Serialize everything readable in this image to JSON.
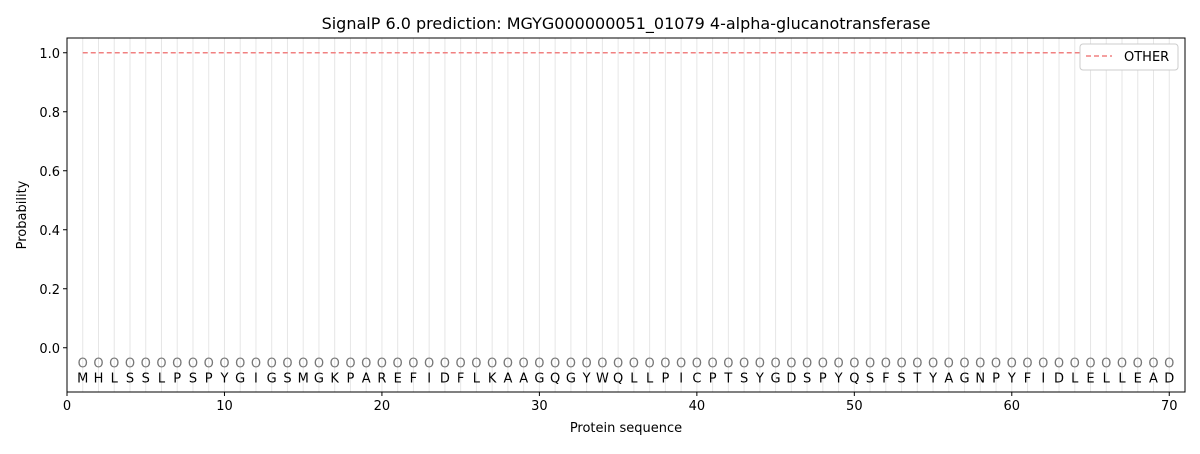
{
  "chart_data": {
    "type": "line",
    "title": "SignalP 6.0 prediction: MGYG000000051_01079 4-alpha-glucanotransferase",
    "xlabel": "Protein sequence",
    "ylabel": "Probability",
    "xlim": [
      0,
      71
    ],
    "ylim": [
      -0.15,
      1.05
    ],
    "xticks": [
      0,
      10,
      20,
      30,
      40,
      50,
      60,
      70
    ],
    "yticks": [
      0.0,
      0.2,
      0.4,
      0.6,
      0.8,
      1.0
    ],
    "ytick_labels": [
      "0.0",
      "0.2",
      "0.4",
      "0.6",
      "0.8",
      "1.0"
    ],
    "legend_position": "top-right",
    "sequence": "MHLSSLPSPYGIGSMGKPAREFIDFLKAAGQGYWQLLPICPTSYGDSPYQSFSTYAGNPYFIDLELLEAD",
    "prediction_label": "O",
    "series": [
      {
        "name": "OTHER",
        "color": "#f08080",
        "style": "dashed",
        "x_start": 1,
        "x_end": 70,
        "value": 1.0
      }
    ]
  }
}
